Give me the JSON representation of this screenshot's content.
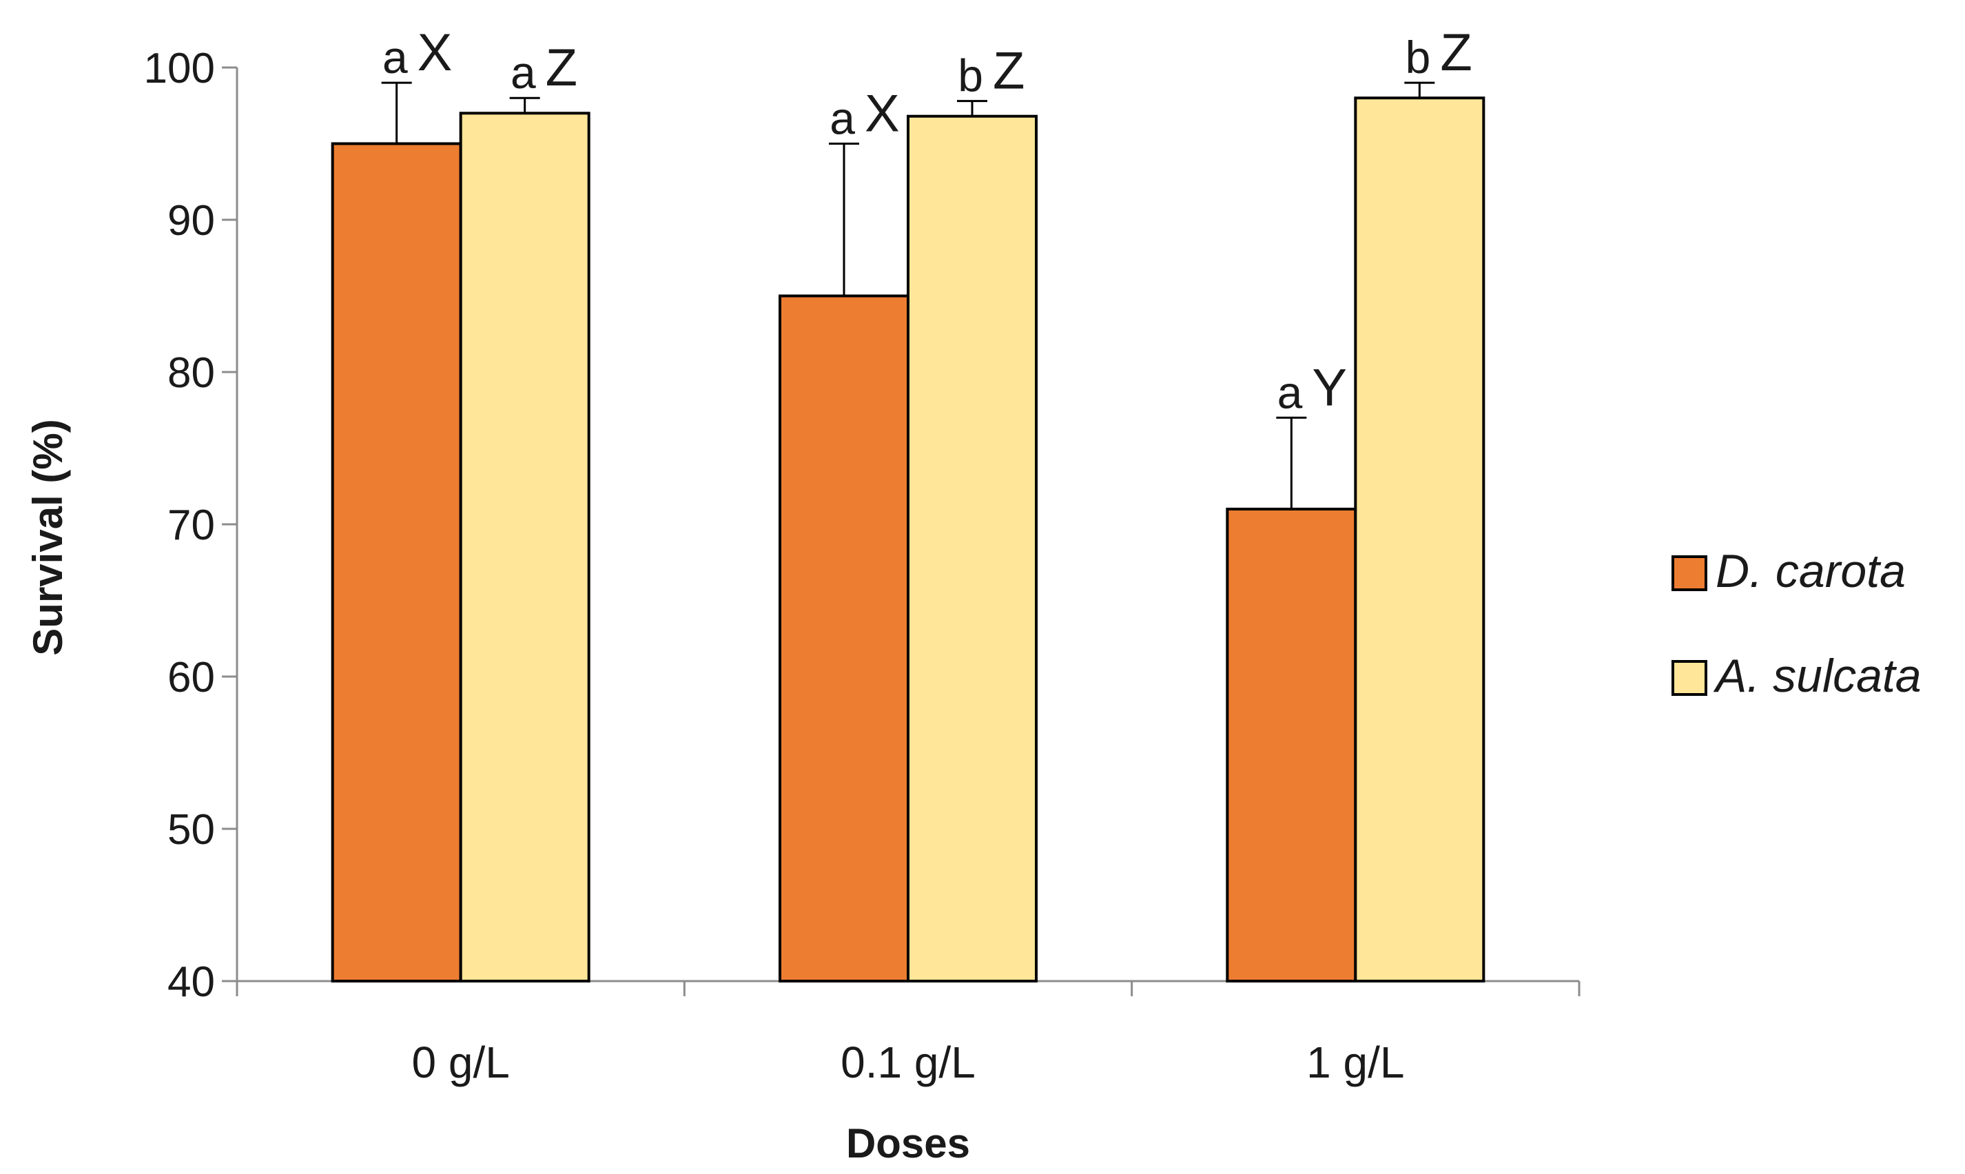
{
  "chart_data": {
    "type": "bar",
    "title": "",
    "xlabel": "Doses",
    "ylabel": "Survival (%)",
    "ylim": [
      40,
      100
    ],
    "yticks": [
      40,
      50,
      60,
      70,
      80,
      90,
      100
    ],
    "grid": false,
    "legend_position": "right",
    "categories": [
      "0 g/L",
      "0.1 g/L",
      "1 g/L"
    ],
    "series": [
      {
        "name": "D. carota",
        "color": "#ED7D31",
        "values": [
          95,
          85,
          71
        ],
        "errors": [
          4,
          10,
          6
        ],
        "letters": [
          "a",
          "a",
          "a"
        ],
        "group_letters": [
          "X",
          "X",
          "Y"
        ]
      },
      {
        "name": "A. sulcata",
        "color": "#FFE699",
        "values": [
          97,
          96.8,
          98
        ],
        "errors": [
          1,
          1,
          1
        ],
        "letters": [
          "a",
          "b",
          "b"
        ],
        "group_letters": [
          "Z",
          "Z",
          "Z"
        ]
      }
    ]
  }
}
